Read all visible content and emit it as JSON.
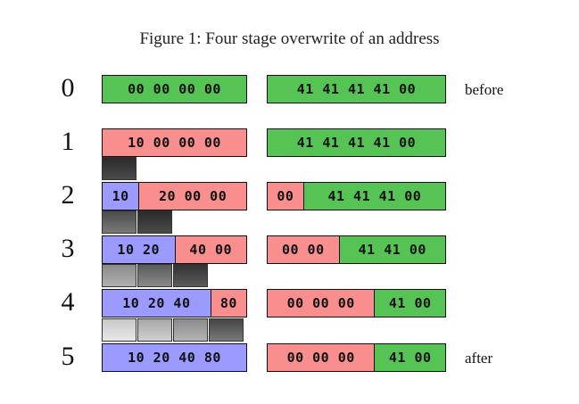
{
  "caption": "Figure 1: Four stage overwrite of an address",
  "colors": {
    "green": "#55c455",
    "red": "#f98e8e",
    "blue": "#9a9aff"
  },
  "rows": [
    {
      "num": "0",
      "label": "before",
      "left": [
        {
          "text": "00 00 00 00",
          "color": "green"
        }
      ],
      "right": [
        {
          "text": "41 41 41 41 00",
          "color": "green"
        }
      ]
    },
    {
      "num": "1",
      "label": "",
      "left": [
        {
          "text": "10 00 00 00",
          "color": "red"
        }
      ],
      "right": [
        {
          "text": "41 41 41 41 00",
          "color": "green"
        }
      ]
    },
    {
      "num": "2",
      "label": "",
      "left": [
        {
          "text": "10",
          "color": "blue"
        },
        {
          "text": "20 00 00",
          "color": "red"
        }
      ],
      "right": [
        {
          "text": "00",
          "color": "red"
        },
        {
          "text": "41 41 41 00",
          "color": "green"
        }
      ]
    },
    {
      "num": "3",
      "label": "",
      "left": [
        {
          "text": "10 20",
          "color": "blue"
        },
        {
          "text": "40 00",
          "color": "red"
        }
      ],
      "right": [
        {
          "text": "00 00",
          "color": "red"
        },
        {
          "text": "41 41 00",
          "color": "green"
        }
      ]
    },
    {
      "num": "4",
      "label": "",
      "left": [
        {
          "text": "10 20 40",
          "color": "blue"
        },
        {
          "text": "80",
          "color": "red"
        }
      ],
      "right": [
        {
          "text": "00 00 00",
          "color": "red"
        },
        {
          "text": "41 00",
          "color": "green"
        }
      ]
    },
    {
      "num": "5",
      "label": "after",
      "left": [
        {
          "text": "10 20 40 80",
          "color": "blue"
        }
      ],
      "right": [
        {
          "text": "00 00 00",
          "color": "red"
        },
        {
          "text": "41 00",
          "color": "green"
        }
      ]
    }
  ]
}
